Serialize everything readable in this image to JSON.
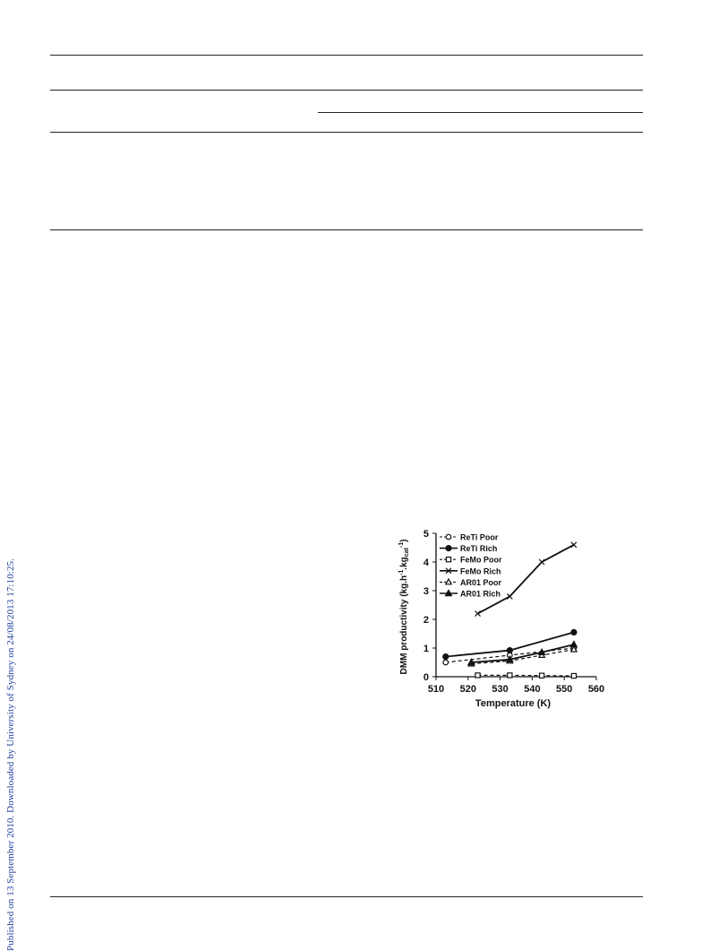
{
  "side_note": "Published on 13 September 2010. Downloaded by University of Sydney on 24/08/2013 17:10:25.",
  "chart_data": {
    "type": "line",
    "xlabel": "Temperature (K)",
    "ylabel_main": "DMM productivity (kg.h",
    "ylabel_sup1": "-1",
    "ylabel_mid": ".kg",
    "ylabel_sub": "cat",
    "ylabel_sup2": "-1",
    "ylabel_end": ")",
    "xlim": [
      510,
      560
    ],
    "ylim": [
      0,
      5
    ],
    "xticks": [
      510,
      520,
      530,
      540,
      550,
      560
    ],
    "yticks": [
      0,
      1,
      2,
      3,
      4,
      5
    ],
    "legend_position": "top-left",
    "series": [
      {
        "name": "ReTi Poor",
        "marker": "circle-open",
        "dash": true,
        "points": [
          [
            513,
            0.5
          ],
          [
            533,
            0.75
          ],
          [
            553,
            1.0
          ]
        ]
      },
      {
        "name": "ReTi Rich",
        "marker": "circle-filled",
        "dash": false,
        "points": [
          [
            513,
            0.7
          ],
          [
            533,
            0.92
          ],
          [
            553,
            1.55
          ]
        ]
      },
      {
        "name": "FeMo Poor",
        "marker": "square-open",
        "dash": true,
        "points": [
          [
            523,
            0.05
          ],
          [
            533,
            0.05
          ],
          [
            543,
            0.04
          ],
          [
            553,
            0.03
          ]
        ]
      },
      {
        "name": "FeMo Rich",
        "marker": "x-filled",
        "dash": false,
        "points": [
          [
            523,
            2.2
          ],
          [
            533,
            2.8
          ],
          [
            543,
            4.0
          ],
          [
            553,
            4.6
          ]
        ]
      },
      {
        "name": "AR01 Poor",
        "marker": "triangle-open",
        "dash": true,
        "points": [
          [
            521,
            0.45
          ],
          [
            533,
            0.55
          ],
          [
            543,
            0.75
          ],
          [
            553,
            0.95
          ]
        ]
      },
      {
        "name": "AR01 Rich",
        "marker": "triangle-filled",
        "dash": false,
        "points": [
          [
            521,
            0.5
          ],
          [
            533,
            0.6
          ],
          [
            543,
            0.85
          ],
          [
            553,
            1.12
          ]
        ]
      }
    ]
  }
}
